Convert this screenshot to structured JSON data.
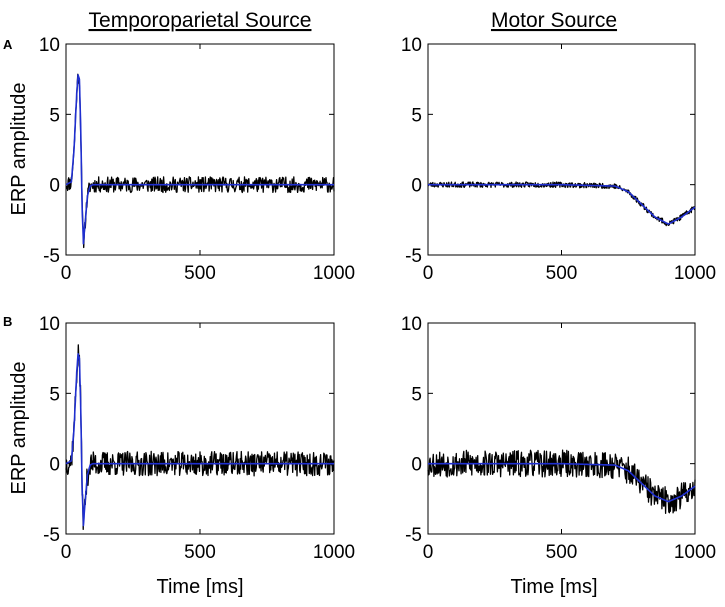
{
  "figure": {
    "panel_labels": [
      "A",
      "B"
    ],
    "column_titles": [
      "Temporoparietal Source",
      "Motor Source"
    ],
    "ylabel": "ERP amplitude",
    "xlabel": "Time [ms]"
  },
  "chart_data": [
    {
      "type": "line",
      "row": "A",
      "column_title": "Temporoparietal Source",
      "ylabel": "ERP amplitude",
      "xlim": [
        0,
        1000
      ],
      "ylim": [
        -5,
        10
      ],
      "xticks": [
        0,
        500,
        1000
      ],
      "yticks": [
        -5,
        0,
        5,
        10
      ],
      "series": [
        {
          "color": "#000000",
          "kind": "noisy",
          "noise": 0.35,
          "seed": 11,
          "x": [
            0,
            20,
            30,
            40,
            45,
            50,
            55,
            60,
            65,
            70,
            80,
            90,
            100,
            150,
            300,
            500,
            700,
            1000
          ],
          "y": [
            0,
            0.2,
            2.5,
            6.5,
            7.8,
            7.5,
            4,
            -1.5,
            -4.2,
            -3,
            -0.8,
            -0.1,
            0,
            0,
            0,
            0,
            0,
            0
          ]
        },
        {
          "color": "#1f2fd0",
          "kind": "smooth",
          "x": [
            0,
            20,
            30,
            40,
            45,
            50,
            55,
            60,
            65,
            70,
            80,
            90,
            100,
            150,
            300,
            500,
            700,
            1000
          ],
          "y": [
            0,
            0.2,
            2.5,
            6.5,
            7.8,
            7.5,
            4,
            -1.5,
            -4.2,
            -3,
            -0.8,
            -0.1,
            0,
            0,
            0,
            0,
            0,
            0
          ]
        }
      ]
    },
    {
      "type": "line",
      "row": "A",
      "column_title": "Motor Source",
      "xlim": [
        0,
        1000
      ],
      "ylim": [
        -5,
        10
      ],
      "xticks": [
        0,
        500,
        1000
      ],
      "yticks": [
        -5,
        0,
        5,
        10
      ],
      "series": [
        {
          "color": "#000000",
          "kind": "noisy",
          "noise": 0.12,
          "seed": 23,
          "x": [
            0,
            500,
            700,
            750,
            800,
            850,
            900,
            950,
            1000
          ],
          "y": [
            0,
            0,
            -0.1,
            -0.5,
            -1.4,
            -2.3,
            -2.8,
            -2.3,
            -1.6
          ]
        },
        {
          "color": "#1f2fd0",
          "kind": "smooth",
          "x": [
            0,
            500,
            700,
            750,
            800,
            850,
            900,
            950,
            1000
          ],
          "y": [
            0,
            0,
            -0.1,
            -0.5,
            -1.4,
            -2.3,
            -2.8,
            -2.3,
            -1.6
          ]
        }
      ]
    },
    {
      "type": "line",
      "row": "B",
      "column_title": "",
      "ylabel": "ERP amplitude",
      "xlabel": "Time [ms]",
      "xlim": [
        0,
        1000
      ],
      "ylim": [
        -5,
        10
      ],
      "xticks": [
        0,
        500,
        1000
      ],
      "yticks": [
        -5,
        0,
        5,
        10
      ],
      "series": [
        {
          "color": "#000000",
          "kind": "noisy",
          "noise": 0.55,
          "seed": 37,
          "x": [
            0,
            20,
            30,
            40,
            45,
            50,
            55,
            60,
            65,
            70,
            80,
            90,
            100,
            150,
            300,
            500,
            700,
            1000
          ],
          "y": [
            0,
            0.2,
            2.5,
            6.5,
            7.8,
            7.5,
            4,
            -1.5,
            -4.4,
            -3,
            -0.8,
            -0.1,
            0,
            0,
            0,
            0,
            0,
            0
          ]
        },
        {
          "color": "#1f2fd0",
          "kind": "smooth",
          "x": [
            0,
            20,
            30,
            40,
            45,
            50,
            55,
            60,
            65,
            70,
            80,
            90,
            100,
            150,
            300,
            500,
            700,
            1000
          ],
          "y": [
            0,
            0.2,
            2.5,
            6.5,
            7.8,
            7.5,
            4,
            -1.5,
            -4.4,
            -3,
            -0.8,
            -0.1,
            0,
            0,
            0,
            0,
            0,
            0
          ]
        }
      ]
    },
    {
      "type": "line",
      "row": "B",
      "column_title": "",
      "xlabel": "Time [ms]",
      "xlim": [
        0,
        1000
      ],
      "ylim": [
        -5,
        10
      ],
      "xticks": [
        0,
        500,
        1000
      ],
      "yticks": [
        -5,
        0,
        5,
        10
      ],
      "series": [
        {
          "color": "#000000",
          "kind": "noisy",
          "noise": 0.6,
          "seed": 53,
          "x": [
            0,
            500,
            700,
            750,
            800,
            850,
            900,
            950,
            1000
          ],
          "y": [
            0,
            0,
            -0.1,
            -0.5,
            -1.4,
            -2.3,
            -2.7,
            -2.3,
            -1.6
          ]
        },
        {
          "color": "#1f2fd0",
          "kind": "smooth",
          "x": [
            0,
            500,
            700,
            750,
            800,
            850,
            900,
            950,
            1000
          ],
          "y": [
            0,
            0,
            -0.1,
            -0.5,
            -1.4,
            -2.3,
            -2.7,
            -2.3,
            -1.6
          ]
        }
      ]
    }
  ]
}
